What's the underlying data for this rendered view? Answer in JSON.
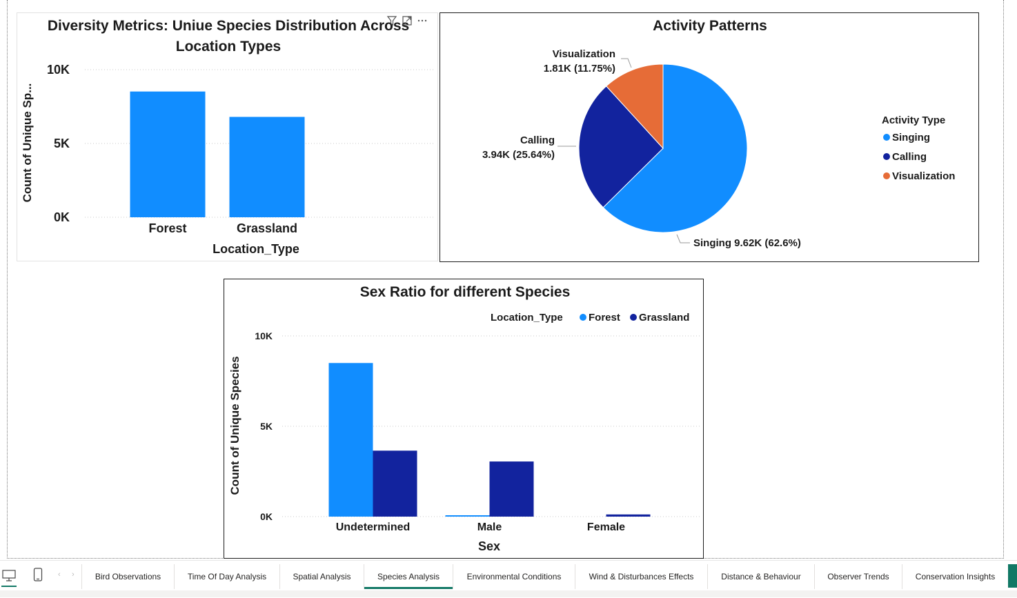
{
  "colors": {
    "forest": "#118DFF",
    "grassland": "#12239E",
    "singing": "#118DFF",
    "calling": "#12239E",
    "visualization": "#E66C37",
    "accent": "#117865"
  },
  "icons": {
    "filter": "filter-icon",
    "focus": "focus-mode-icon",
    "more": "more-options-icon"
  },
  "chart_data": [
    {
      "type": "bar",
      "title_line1": "Diversity Metrics: Uniue Species Distribution Across",
      "title_line2": "Location Types",
      "categories": [
        "Forest",
        "Grassland"
      ],
      "values": [
        8520,
        6800
      ],
      "xlabel": "Location_Type",
      "ylabel": "Count of Unique Sp...",
      "ylim": [
        0,
        10000
      ],
      "yticks": [
        {
          "v": 0,
          "label": "0K"
        },
        {
          "v": 5000,
          "label": "5K"
        },
        {
          "v": 10000,
          "label": "10K"
        }
      ],
      "grid": true
    },
    {
      "type": "pie",
      "title": "Activity Patterns",
      "legend_title": "Activity Type",
      "legend_position": "right",
      "slices": [
        {
          "label": "Singing",
          "value": 9620,
          "percent": 62.6,
          "data_label": "Singing 9.62K (62.6%)"
        },
        {
          "label": "Calling",
          "value": 3940,
          "percent": 25.64,
          "data_label_name": "Calling",
          "data_label_value": "3.94K (25.64%)"
        },
        {
          "label": "Visualization",
          "value": 1810,
          "percent": 11.75,
          "data_label_name": "Visualization",
          "data_label_value": "1.81K (11.75%)"
        }
      ]
    },
    {
      "type": "bar",
      "title": "Sex Ratio for different Species",
      "legend_title": "Location_Type",
      "legend_position": "top-right",
      "categories": [
        "Undetermined",
        "Male",
        "Female"
      ],
      "series": [
        {
          "name": "Forest",
          "values": [
            8500,
            60,
            0
          ]
        },
        {
          "name": "Grassland",
          "values": [
            3650,
            3050,
            120
          ]
        }
      ],
      "xlabel": "Sex",
      "ylabel": "Count of Unique Species",
      "ylim": [
        0,
        10000
      ],
      "yticks": [
        {
          "v": 0,
          "label": "0K"
        },
        {
          "v": 5000,
          "label": "5K"
        },
        {
          "v": 10000,
          "label": "10K"
        }
      ],
      "grid": true
    }
  ],
  "footer": {
    "view_icons": [
      "desktop-view-icon",
      "mobile-view-icon"
    ],
    "nav_prev": "‹",
    "nav_next": "›",
    "tabs": [
      {
        "label": "Bird Observations",
        "active": false
      },
      {
        "label": "Time Of Day Analysis",
        "active": false
      },
      {
        "label": "Spatial Analysis",
        "active": false
      },
      {
        "label": "Species Analysis",
        "active": true
      },
      {
        "label": "Environmental Conditions",
        "active": false
      },
      {
        "label": "Wind & Disturbances Effects",
        "active": false
      },
      {
        "label": "Distance & Behaviour",
        "active": false
      },
      {
        "label": "Observer Trends",
        "active": false
      },
      {
        "label": "Conservation Insights",
        "active": false
      }
    ]
  }
}
